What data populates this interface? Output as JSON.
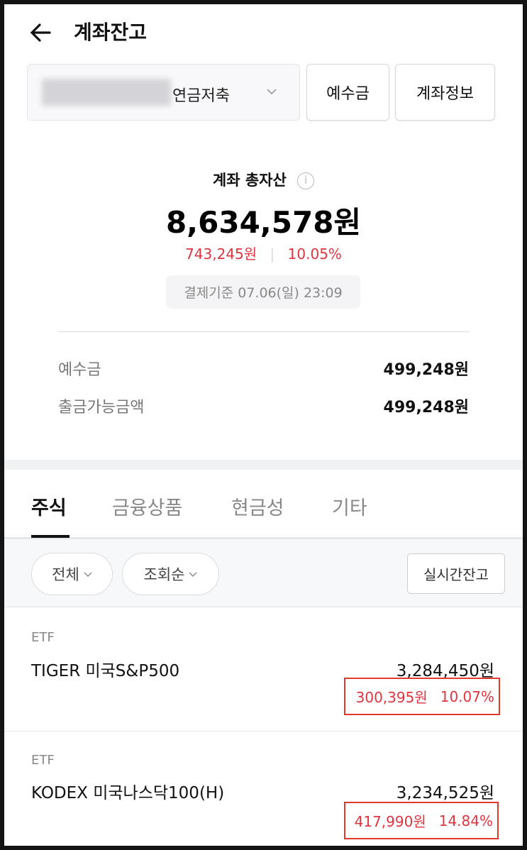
{
  "header": {
    "title": "계좌잔고",
    "back_icon": "arrow-left-icon"
  },
  "account": {
    "type": "연금저축",
    "buttons": {
      "deposit": "예수금",
      "info": "계좌정보"
    }
  },
  "summary": {
    "label": "계좌 총자산",
    "total": "8,634,578원",
    "profit": "743,245원",
    "rate": "10.05%",
    "timestamp": "결제기준 07.06(일) 23:09"
  },
  "details": [
    {
      "label": "예수금",
      "value": "499,248원"
    },
    {
      "label": "출금가능금액",
      "value": "499,248원"
    }
  ],
  "tabs": [
    {
      "label": "주식",
      "active": true
    },
    {
      "label": "금융상품"
    },
    {
      "label": "현금성"
    },
    {
      "label": "기타"
    }
  ],
  "filters": {
    "category": "전체",
    "sort": "조회순",
    "realtime": "실시간잔고"
  },
  "holdings": [
    {
      "type": "ETF",
      "name": "TIGER 미국S&P500",
      "amount": "3,284,450원",
      "profit": "300,395원",
      "rate": "10.07%"
    },
    {
      "type": "ETF",
      "name": "KODEX 미국나스닥100(H)",
      "amount": "3,234,525원",
      "profit": "417,990원",
      "rate": "14.84%"
    }
  ],
  "colors": {
    "profit": "#e0353f",
    "highlight_box": "#e23a2a"
  }
}
